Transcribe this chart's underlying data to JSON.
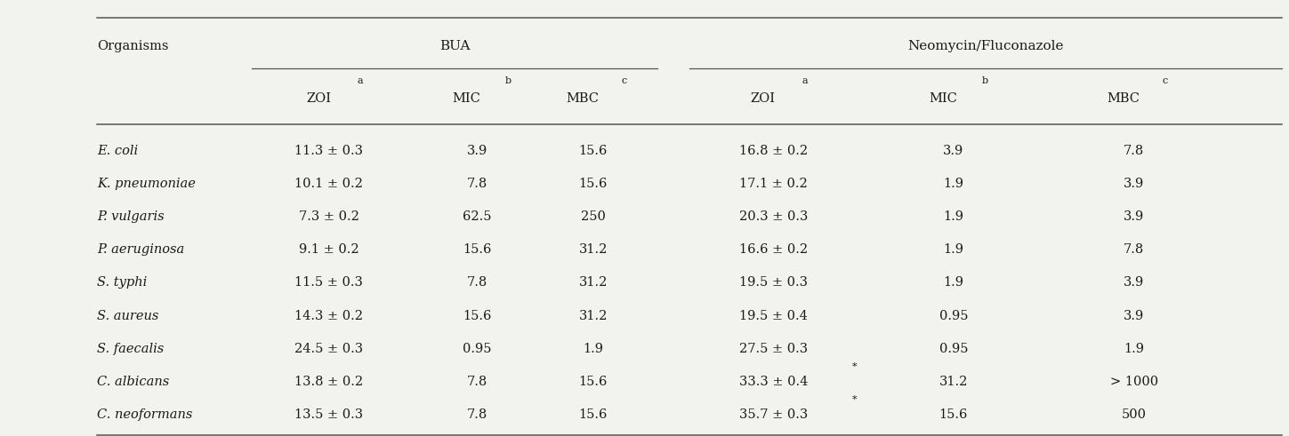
{
  "col_group_labels": [
    "BUA",
    "Neomycin/Fluconazole"
  ],
  "col_headers_base": [
    "ZOI",
    "MIC",
    "MBC",
    "ZOI",
    "MIC",
    "MBC"
  ],
  "col_headers_sup": [
    "a",
    "b",
    "c",
    "a",
    "b",
    "c"
  ],
  "rows": [
    [
      "E. coli",
      "11.3 ± 0.3",
      "3.9",
      "15.6",
      "16.8 ± 0.2",
      "3.9",
      "7.8"
    ],
    [
      "K. pneumoniae",
      "10.1 ± 0.2",
      "7.8",
      "15.6",
      "17.1 ± 0.2",
      "1.9",
      "3.9"
    ],
    [
      "P. vulgaris",
      "7.3 ± 0.2",
      "62.5",
      "250",
      "20.3 ± 0.3",
      "1.9",
      "3.9"
    ],
    [
      "P. aeruginosa",
      "9.1 ± 0.2",
      "15.6",
      "31.2",
      "16.6 ± 0.2",
      "1.9",
      "7.8"
    ],
    [
      "S. typhi",
      "11.5 ± 0.3",
      "7.8",
      "31.2",
      "19.5 ± 0.3",
      "1.9",
      "3.9"
    ],
    [
      "S. aureus",
      "14.3 ± 0.2",
      "15.6",
      "31.2",
      "19.5 ± 0.4",
      "0.95",
      "3.9"
    ],
    [
      "S. faecalis",
      "24.5 ± 0.3",
      "0.95",
      "1.9",
      "27.5 ± 0.3",
      "0.95",
      "1.9"
    ],
    [
      "C. albicans",
      "13.8 ± 0.2",
      "7.8",
      "15.6",
      "33.3 ± 0.4*",
      "31.2",
      "> 1000"
    ],
    [
      "C. neoformans",
      "13.5 ± 0.3",
      "7.8",
      "15.6",
      "35.7 ± 0.3*",
      "15.6",
      "500"
    ]
  ],
  "figsize": [
    14.49,
    4.91
  ],
  "bg_color": "#f2f2ee",
  "text_color": "#1a1a1a",
  "line_color": "#555555",
  "font_size": 10.5,
  "header_font_size": 10.5,
  "group_font_size": 11.0
}
